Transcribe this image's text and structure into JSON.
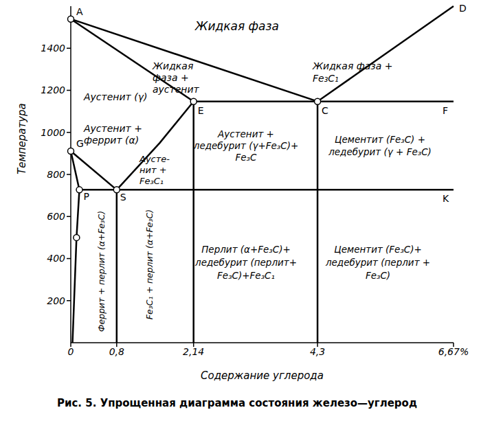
{
  "chart_data": {
    "type": "line",
    "title": "Рис. 5. Упрощенная диаграмма состояния железо—углерод",
    "x_label": "Содержание углерода",
    "y_label": "Температура",
    "xlim": [
      0,
      6.67
    ],
    "xticks": [
      0,
      {
        "value": 0.8,
        "label": "0,8"
      },
      {
        "value": 2.14,
        "label": "2,14"
      },
      {
        "value": 4.3,
        "label": "4,3"
      },
      {
        "value": 6.67,
        "label": "6,67%"
      }
    ],
    "ylim": [
      0,
      1600
    ],
    "yticks": [
      200,
      400,
      600,
      800,
      1000,
      1200,
      1400
    ],
    "grid": false,
    "color": "#000000",
    "series": [
      {
        "x": [
          0,
          4.3,
          6.67
        ],
        "y": [
          1539,
          1147,
          1600
        ]
      },
      {
        "x": [
          0,
          2.14
        ],
        "y": [
          1539,
          1147
        ]
      },
      {
        "x": [
          2.14,
          6.67
        ],
        "y": [
          1147,
          1147
        ]
      },
      {
        "x": [
          0,
          0.8
        ],
        "y": [
          911,
          727
        ]
      },
      {
        "x": [
          0.8,
          1.55,
          2.14
        ],
        "y": [
          727,
          950,
          1147
        ]
      },
      {
        "x": [
          0,
          0.15
        ],
        "y": [
          911,
          727
        ]
      },
      {
        "x": [
          0.15,
          6.67
        ],
        "y": [
          727,
          727
        ]
      },
      {
        "x": [
          0.15,
          0.1,
          0.03
        ],
        "y": [
          727,
          500,
          0
        ]
      },
      {
        "x": [
          0.8,
          0.8
        ],
        "y": [
          727,
          0
        ]
      },
      {
        "x": [
          2.14,
          2.14
        ],
        "y": [
          1147,
          0
        ]
      },
      {
        "x": [
          4.3,
          4.3
        ],
        "y": [
          1147,
          0
        ]
      }
    ],
    "points": [
      {
        "name": "A",
        "x": 0,
        "y": 1539,
        "marker": "circle"
      },
      {
        "name": "D",
        "x": 6.67,
        "y": 1600,
        "marker": "none"
      },
      {
        "name": "G",
        "x": 0,
        "y": 911,
        "marker": "circle"
      },
      {
        "name": "P",
        "x": 0.15,
        "y": 727,
        "marker": "circle"
      },
      {
        "name": "S",
        "x": 0.8,
        "y": 727,
        "marker": "circle"
      },
      {
        "name": "E",
        "x": 2.14,
        "y": 1147,
        "marker": "circle"
      },
      {
        "name": "C",
        "x": 4.3,
        "y": 1147,
        "marker": "circle"
      },
      {
        "name": "F",
        "x": 6.67,
        "y": 1147,
        "marker": "none"
      },
      {
        "name": "K",
        "x": 6.67,
        "y": 727,
        "marker": "none"
      },
      {
        "x": 0.1,
        "y": 500,
        "marker": "circle"
      }
    ],
    "annotations": [
      {
        "lines": [
          "Жидкая фаза"
        ]
      },
      {
        "lines": [
          "Жидкая",
          "фаза +",
          "аустенит"
        ]
      },
      {
        "lines": [
          "Жидкая фаза +",
          "Fe₃C₁"
        ]
      },
      {
        "lines": [
          "Аустенит (γ)"
        ]
      },
      {
        "lines": [
          "Аустенит +",
          "феррит (α)"
        ]
      },
      {
        "lines": [
          "Аусте-",
          "нит +",
          "Fe₃C₁"
        ]
      },
      {
        "lines": [
          "Аустенит +",
          "ледебурит (γ+Fe₃C)+",
          "Fe₃C"
        ]
      },
      {
        "lines": [
          "Цементит (Fe₃C) +",
          "ледебурит (γ + Fe₃C)"
        ]
      },
      {
        "lines": [
          "Перлит (α+Fe₃C)+",
          "ледебурит (перлит+",
          "Fe₃C)+Fe₃C₁"
        ]
      },
      {
        "lines": [
          "Цементит (Fe₃C)+",
          "ледебурит (перлит +",
          "Fe₃C)"
        ]
      },
      {
        "lines": [
          "Феррит + перлит (α+Fe₃C)"
        ]
      },
      {
        "lines": [
          "Fe₃C₁ + перлит (α+Fe₃C)"
        ]
      }
    ]
  }
}
